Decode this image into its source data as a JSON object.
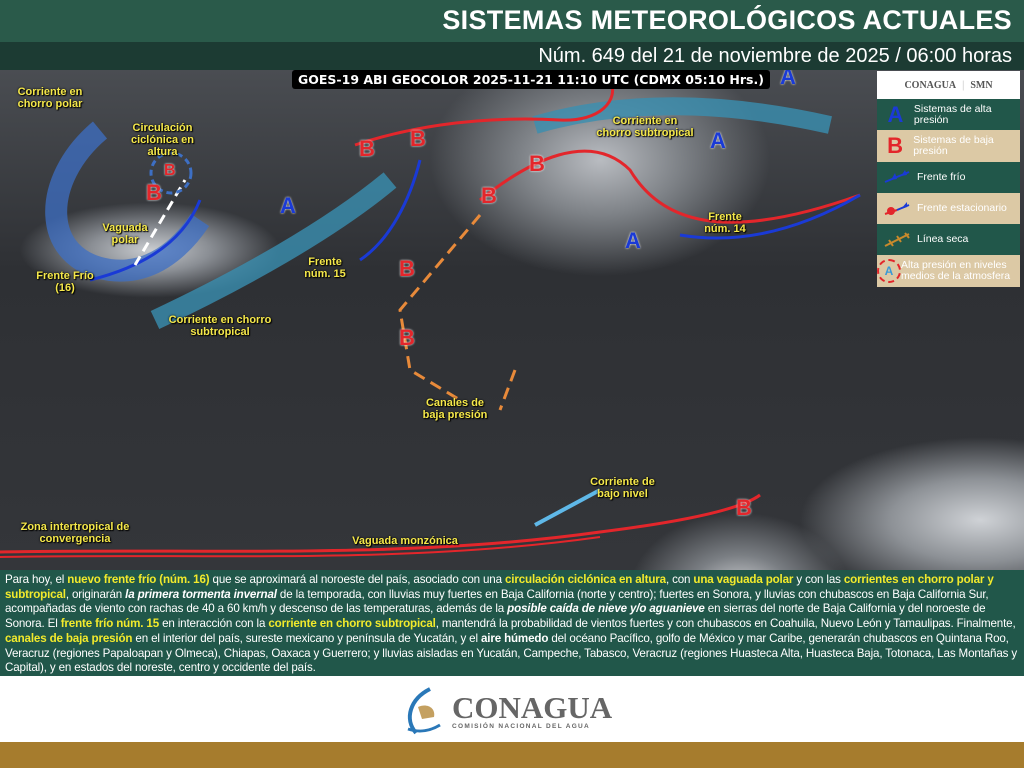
{
  "header": {
    "title": "SISTEMAS METEOROLÓGICOS ACTUALES",
    "subtitle": "Núm. 649 del 21 de noviembre de 2025 / 06:00 horas"
  },
  "map": {
    "satellite_caption": "GOES-19 ABI GEOCOLOR 2025-11-21 11:10 UTC (CDMX  05:10 Hrs.)",
    "labels": [
      "Corriente en chorro polar",
      "Circulación ciclónica en altura",
      "Vaguada polar",
      "Frente Frío (16)",
      "Corriente en chorro subtropical",
      "Frente núm. 15",
      "Corriente en chorro subtropical",
      "Frente núm. 14",
      "Canales de baja presión",
      "Corriente de bajo nivel",
      "Zona intertropical de convergencia",
      "Vaguada monzónica"
    ],
    "high_symbol": "A",
    "low_symbol": "B",
    "colors": {
      "cold_front": "#1a3ad6",
      "warm_front": "#e3262b",
      "jet": "#3a8fb0",
      "trough": "#e88a3a",
      "label": "#f5e84a"
    }
  },
  "legend": {
    "logo1": "CONAGUA",
    "logo2": "SMN",
    "items": [
      {
        "symbol": "A",
        "label": "Sistemas de alta presión"
      },
      {
        "symbol": "B",
        "label": "Sistemas de baja presión"
      },
      {
        "symbol": "cold-front-icon",
        "label": "Frente frío"
      },
      {
        "symbol": "stationary-front-icon",
        "label": "Frente estacionario"
      },
      {
        "symbol": "dry-line-icon",
        "label": "Línea seca"
      },
      {
        "symbol": "A",
        "label": "Alta presión en niveles medios de la atmosfera"
      }
    ]
  },
  "description": [
    {
      "t": "Para hoy, el "
    },
    {
      "t": "nuevo frente frío (núm. 16)",
      "s": "hl"
    },
    {
      "t": " que se aproximará al noroeste del país, asociado con una "
    },
    {
      "t": "circulación ciclónica en altura",
      "s": "hl"
    },
    {
      "t": ", con "
    },
    {
      "t": "una vaguada polar",
      "s": "hl"
    },
    {
      "t": " y con las "
    },
    {
      "t": "corrientes en chorro polar y subtropical",
      "s": "hl"
    },
    {
      "t": ", originarán "
    },
    {
      "t": "la primera tormenta invernal",
      "s": "bi"
    },
    {
      "t": " de la temporada, con lluvias muy fuertes en Baja California (norte y centro); fuertes en Sonora, y lluvias con chubascos en Baja California Sur, acompañadas de viento con rachas de 40 a 60 km/h y descenso de las temperaturas, además de la "
    },
    {
      "t": "posible caída de nieve y/o aguanieve",
      "s": "bi"
    },
    {
      "t": " en sierras del norte de Baja California y del noroeste de Sonora. El "
    },
    {
      "t": "frente frío núm. 15",
      "s": "hl"
    },
    {
      "t": " en interacción con la "
    },
    {
      "t": "corriente en chorro subtropical",
      "s": "hl"
    },
    {
      "t": ", mantendrá la probabilidad de vientos fuertes y con chubascos en Coahuila, Nuevo León y Tamaulipas. Finalmente, "
    },
    {
      "t": "canales de baja presión",
      "s": "hl"
    },
    {
      "t": " en el interior del país, sureste mexicano y península de Yucatán, y el "
    },
    {
      "t": "aire húmedo",
      "s": "b"
    },
    {
      "t": " del océano Pacífico, golfo de México y mar Caribe, generarán chubascos en Quintana Roo, Veracruz (regiones Papaloapan y Olmeca), Chiapas, Oaxaca y Guerrero; y lluvias aisladas en Yucatán, Campeche, Tabasco, Veracruz (regiones Huasteca Alta, Huasteca Baja, Totonaca, Las Montañas y Capital), y en estados del noreste, centro y occidente del país."
    }
  ],
  "footer": {
    "logo_name": "CONAGUA",
    "logo_sub": "COMISIÓN NACIONAL DEL AGUA"
  }
}
